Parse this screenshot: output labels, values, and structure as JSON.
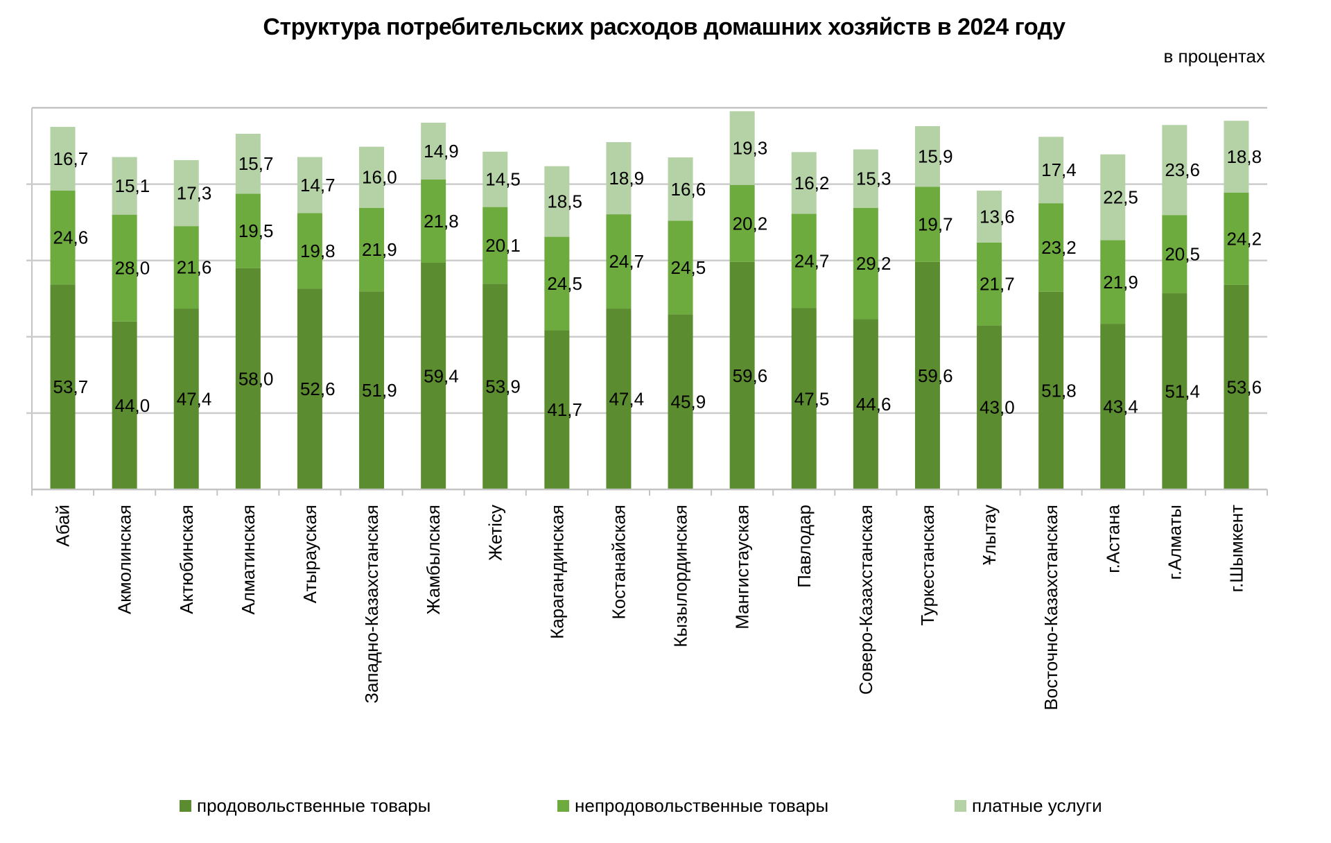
{
  "chart_data": {
    "type": "bar",
    "stacked": true,
    "title": "Структура потребительских расходов домашних хозяйств в 2024 году",
    "subtitle": "в процентах",
    "xlabel": "",
    "ylabel": "",
    "ylim": [
      0,
      100
    ],
    "y_gridlines": [
      20,
      40,
      60,
      80
    ],
    "grid": true,
    "y_tick_labels_visible": false,
    "legend_position": "bottom",
    "categories": [
      "Абай",
      "Акмолинская",
      "Актюбинская",
      "Алматинская",
      "Атырауская",
      "Западно-Казахстанская",
      "Жамбылская",
      "Жетісу",
      "Карагандинская",
      "Костанайская",
      "Кызылординская",
      "Мангистауская",
      "Павлодар",
      "Соверо-Казахстанская",
      "Туркестанская",
      "Ұлытау",
      "Восточно-Казахстанская",
      "г.Астана",
      "г.Алматы",
      "г.Шымкент"
    ],
    "series": [
      {
        "name": "продовольственные товары",
        "color": "#5b8c2f",
        "values": [
          53.7,
          44.0,
          47.4,
          58.0,
          52.6,
          51.9,
          59.4,
          53.9,
          41.7,
          47.4,
          45.9,
          59.6,
          47.5,
          44.6,
          59.6,
          43.0,
          51.8,
          43.4,
          51.4,
          53.6
        ]
      },
      {
        "name": "непродовольственные товары",
        "color": "#6dab3f",
        "values": [
          24.6,
          28.0,
          21.6,
          19.5,
          19.8,
          21.9,
          21.8,
          20.1,
          24.5,
          24.7,
          24.5,
          20.2,
          24.7,
          29.2,
          19.7,
          21.7,
          23.2,
          21.9,
          20.5,
          24.2
        ]
      },
      {
        "name": "платные услуги",
        "color": "#b5d1a6",
        "values": [
          16.7,
          15.1,
          17.3,
          15.7,
          14.7,
          16.0,
          14.9,
          14.5,
          18.5,
          18.9,
          16.6,
          19.3,
          16.2,
          15.3,
          15.9,
          13.6,
          17.4,
          22.5,
          23.6,
          18.8
        ]
      }
    ],
    "decimal_separator": ","
  }
}
